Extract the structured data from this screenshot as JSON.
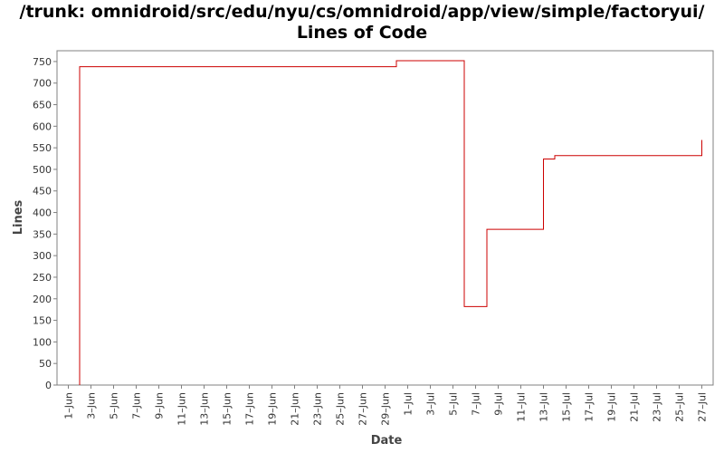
{
  "header": {
    "title_line1": "/trunk: omnidroid/src/edu/nyu/cs/omnidroid/app/view/simple/factoryui/",
    "title_line2": "Lines of Code"
  },
  "chart_data": {
    "type": "line",
    "title": "/trunk: omnidroid/src/edu/nyu/cs/omnidroid/app/view/simple/factoryui/ Lines of Code",
    "xlabel": "Date",
    "ylabel": "Lines",
    "step": true,
    "grid": false,
    "line_color": "#cc0000",
    "ylim": [
      0,
      775
    ],
    "xlim": [
      "2008-05-31",
      "2008-07-28"
    ],
    "yticks": [
      0,
      50,
      100,
      150,
      200,
      250,
      300,
      350,
      400,
      450,
      500,
      550,
      600,
      650,
      700,
      750
    ],
    "xticks": [
      {
        "date": "2008-06-01",
        "label": "1–Jun"
      },
      {
        "date": "2008-06-03",
        "label": "3–Jun"
      },
      {
        "date": "2008-06-05",
        "label": "5–Jun"
      },
      {
        "date": "2008-06-07",
        "label": "7–Jun"
      },
      {
        "date": "2008-06-09",
        "label": "9–Jun"
      },
      {
        "date": "2008-06-11",
        "label": "11–Jun"
      },
      {
        "date": "2008-06-13",
        "label": "13–Jun"
      },
      {
        "date": "2008-06-15",
        "label": "15–Jun"
      },
      {
        "date": "2008-06-17",
        "label": "17–Jun"
      },
      {
        "date": "2008-06-19",
        "label": "19–Jun"
      },
      {
        "date": "2008-06-21",
        "label": "21–Jun"
      },
      {
        "date": "2008-06-23",
        "label": "23–Jun"
      },
      {
        "date": "2008-06-25",
        "label": "25–Jun"
      },
      {
        "date": "2008-06-27",
        "label": "27–Jun"
      },
      {
        "date": "2008-06-29",
        "label": "29–Jun"
      },
      {
        "date": "2008-07-01",
        "label": "1–Jul"
      },
      {
        "date": "2008-07-03",
        "label": "3–Jul"
      },
      {
        "date": "2008-07-05",
        "label": "5–Jul"
      },
      {
        "date": "2008-07-07",
        "label": "7–Jul"
      },
      {
        "date": "2008-07-09",
        "label": "9–Jul"
      },
      {
        "date": "2008-07-11",
        "label": "11–Jul"
      },
      {
        "date": "2008-07-13",
        "label": "13–Jul"
      },
      {
        "date": "2008-07-15",
        "label": "15–Jul"
      },
      {
        "date": "2008-07-17",
        "label": "17–Jul"
      },
      {
        "date": "2008-07-19",
        "label": "19–Jul"
      },
      {
        "date": "2008-07-21",
        "label": "21–Jul"
      },
      {
        "date": "2008-07-23",
        "label": "23–Jul"
      },
      {
        "date": "2008-07-25",
        "label": "25–Jul"
      },
      {
        "date": "2008-07-27",
        "label": "27–Jul"
      }
    ],
    "series": [
      {
        "points": [
          {
            "x": "2008-06-02",
            "y": 0
          },
          {
            "x": "2008-06-02",
            "y": 738
          },
          {
            "x": "2008-06-30",
            "y": 752
          },
          {
            "x": "2008-07-06",
            "y": 182
          },
          {
            "x": "2008-07-08",
            "y": 361
          },
          {
            "x": "2008-07-13",
            "y": 524
          },
          {
            "x": "2008-07-14",
            "y": 532
          },
          {
            "x": "2008-07-27",
            "y": 568
          }
        ]
      }
    ]
  }
}
